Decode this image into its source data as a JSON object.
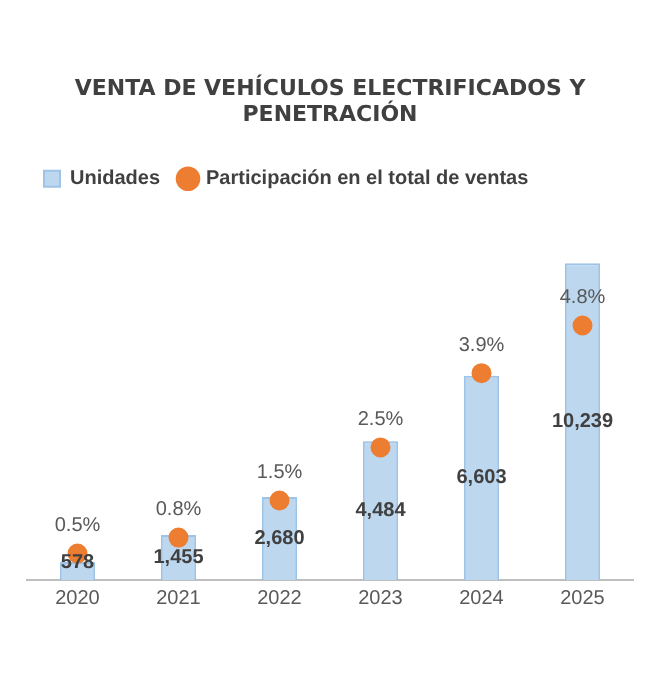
{
  "chart_data": {
    "type": "bar",
    "title": "VENTA DE VEHÍCULOS ELECTRIFICADOS Y PENETRACIÓN",
    "categories": [
      "2020",
      "2021",
      "2022",
      "2023",
      "2024",
      "2025"
    ],
    "series": [
      {
        "name": "Unidades",
        "color": "#bdd7ee",
        "values": [
          578,
          1455,
          2680,
          4484,
          6603,
          10239
        ],
        "value_labels": [
          "578",
          "1,455",
          "2,680",
          "4,484",
          "6,603",
          "10,239"
        ]
      },
      {
        "name": "Participación en el total de ventas",
        "type": "scatter",
        "axis": "y2",
        "color": "#ed7d31",
        "values": [
          0.5,
          0.8,
          1.5,
          2.5,
          3.9,
          4.8
        ],
        "value_labels": [
          "0.5%",
          "0.8%",
          "1.5%",
          "2.5%",
          "3.9%",
          "4.8%"
        ]
      }
    ],
    "tick_labels": "x",
    "grid": false,
    "legend": "top left",
    "marker": "circle"
  }
}
